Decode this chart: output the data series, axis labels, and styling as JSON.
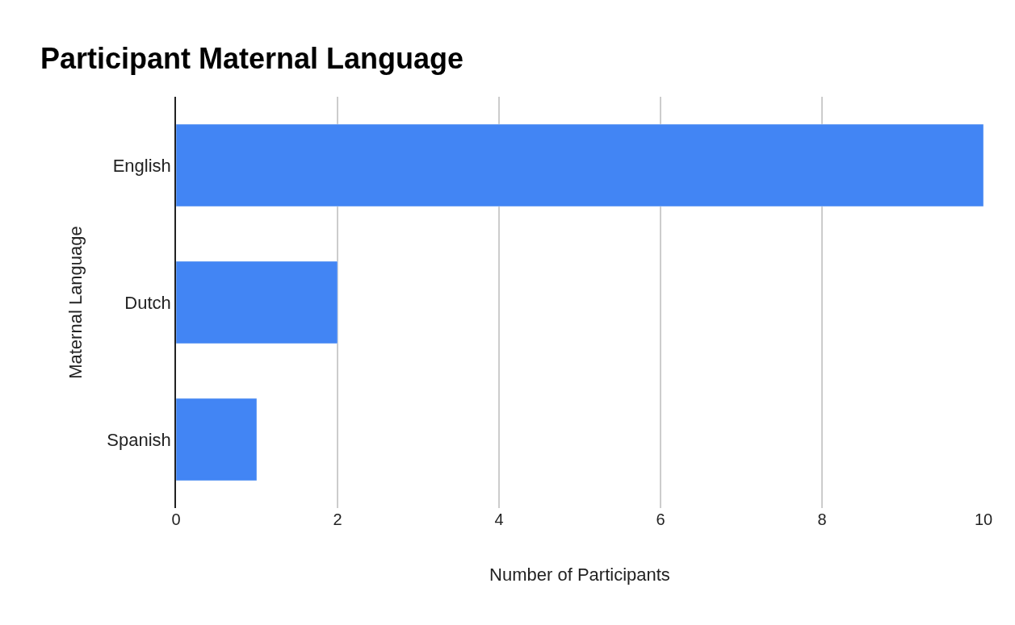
{
  "chart_data": {
    "type": "bar",
    "orientation": "horizontal",
    "title": "Participant Maternal Language",
    "xlabel": "Number of Participants",
    "ylabel": "Maternal Language",
    "categories": [
      "English",
      "Dutch",
      "Spanish"
    ],
    "values": [
      10,
      2,
      1
    ],
    "color": "#4285f4",
    "xlim": [
      0,
      10
    ],
    "xticks": [
      0,
      2,
      4,
      6,
      8,
      10
    ],
    "grid": "x"
  }
}
